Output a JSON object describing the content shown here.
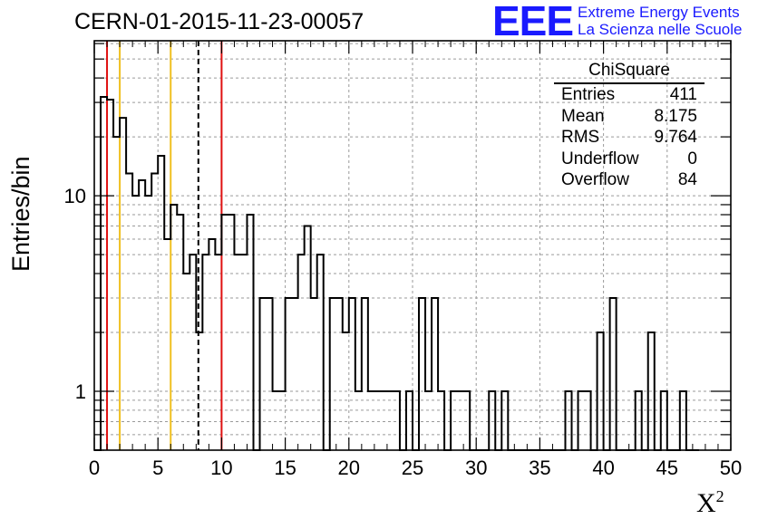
{
  "title": "CERN-01-2015-11-23-00057",
  "logo": {
    "mark": "EEE",
    "line1": "Extreme Energy Events",
    "line2": "La Scienza nelle Scuole",
    "color": "#1a1aff"
  },
  "stats": {
    "title": "ChiSquare",
    "rows": [
      {
        "label": "Entries",
        "value": "411"
      },
      {
        "label": "Mean",
        "value": "8.175"
      },
      {
        "label": "RMS",
        "value": "9.764"
      },
      {
        "label": "Underflow",
        "value": "0"
      },
      {
        "label": "Overflow",
        "value": "84"
      }
    ]
  },
  "chart_data": {
    "type": "bar",
    "subtype": "histogram-step",
    "xlabel": "X",
    "xlabel_sup": "2",
    "ylabel": "Entries/bin",
    "xlim": [
      0,
      50
    ],
    "ylim": [
      0.5,
      62
    ],
    "yscale": "log",
    "grid": true,
    "bin_width": 0.5,
    "x_ticks": [
      "0",
      "5",
      "10",
      "15",
      "20",
      "25",
      "30",
      "35",
      "40",
      "45",
      "50"
    ],
    "y_ticks": [
      "1",
      "10"
    ],
    "values": [
      0,
      32,
      31,
      20,
      25,
      13,
      10,
      12,
      10,
      13,
      16,
      6,
      9,
      8,
      4,
      5,
      2,
      5,
      6,
      5,
      8,
      8,
      5,
      5,
      8,
      0,
      3,
      3,
      1,
      1,
      3,
      3,
      5,
      7,
      3,
      5,
      0,
      3,
      3,
      2,
      3,
      1,
      3,
      1,
      1,
      1,
      1,
      1,
      0,
      1,
      0,
      3,
      1,
      3,
      1,
      0,
      1,
      1,
      1,
      0,
      0,
      0,
      1,
      0,
      1,
      0,
      0,
      0,
      0,
      0,
      0,
      0,
      0,
      0,
      1,
      0,
      1,
      1,
      0,
      2,
      0,
      3,
      0,
      0,
      0,
      1,
      0,
      2,
      0,
      1,
      0,
      0,
      1,
      0,
      0
    ],
    "vertical_lines": [
      {
        "x": 1,
        "color": "#e01010",
        "style": "solid"
      },
      {
        "x": 2,
        "color": "#f0c020",
        "style": "solid"
      },
      {
        "x": 6,
        "color": "#f0c020",
        "style": "solid"
      },
      {
        "x": 8.175,
        "color": "#000000",
        "style": "dashed"
      },
      {
        "x": 10,
        "color": "#e01010",
        "style": "solid"
      }
    ]
  }
}
